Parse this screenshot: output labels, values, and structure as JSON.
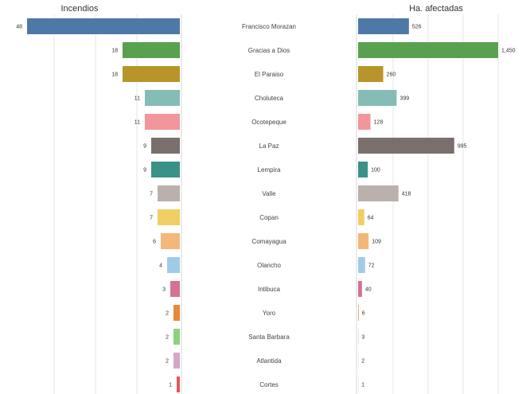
{
  "chart_data": {
    "type": "bar",
    "title": "",
    "left_header": "Incendios",
    "right_header": "Ha. afectadas",
    "categories": [
      "Francisco Morazan",
      "Gracias a Dios",
      "El Paraiso",
      "Choluteca",
      "Ocotepeque",
      "La Paz",
      "Lempira",
      "Valle",
      "Copan",
      "Comayagua",
      "Olancho",
      "Intibuca",
      "Yoro",
      "Santa Barbara",
      "Atlantida",
      "Cortes"
    ],
    "left_value_labels": [
      "48",
      "18",
      "18",
      "11",
      "11",
      "9",
      "9",
      "7",
      "7",
      "6",
      "4",
      "3",
      "2",
      "2",
      "2",
      "1"
    ],
    "right_value_labels": [
      "526",
      "1,450",
      "260",
      "399",
      "128",
      "995",
      "100",
      "418",
      "64",
      "109",
      "72",
      "40",
      "6",
      "3",
      "2",
      "1"
    ],
    "series": [
      {
        "name": "Incendios",
        "values": [
          48,
          18,
          18,
          11,
          11,
          9,
          9,
          7,
          7,
          6,
          4,
          3,
          2,
          2,
          2,
          1
        ],
        "xlim": [
          0,
          48
        ]
      },
      {
        "name": "Ha. afectadas",
        "values": [
          526,
          1450,
          260,
          399,
          128,
          995,
          100,
          418,
          64,
          109,
          72,
          40,
          6,
          3,
          2,
          1
        ],
        "xlim": [
          0,
          1450
        ]
      }
    ],
    "colors": [
      "#4e79a7",
      "#59a14f",
      "#b8952a",
      "#86bcb6",
      "#f1969a",
      "#79706e",
      "#3a9188",
      "#bab0ac",
      "#f1ce63",
      "#f4b77a",
      "#a0cbe8",
      "#d37295",
      "#e8893a",
      "#8cd17d",
      "#d4a6c8",
      "#e15759"
    ],
    "grid": true,
    "legend": "none"
  }
}
